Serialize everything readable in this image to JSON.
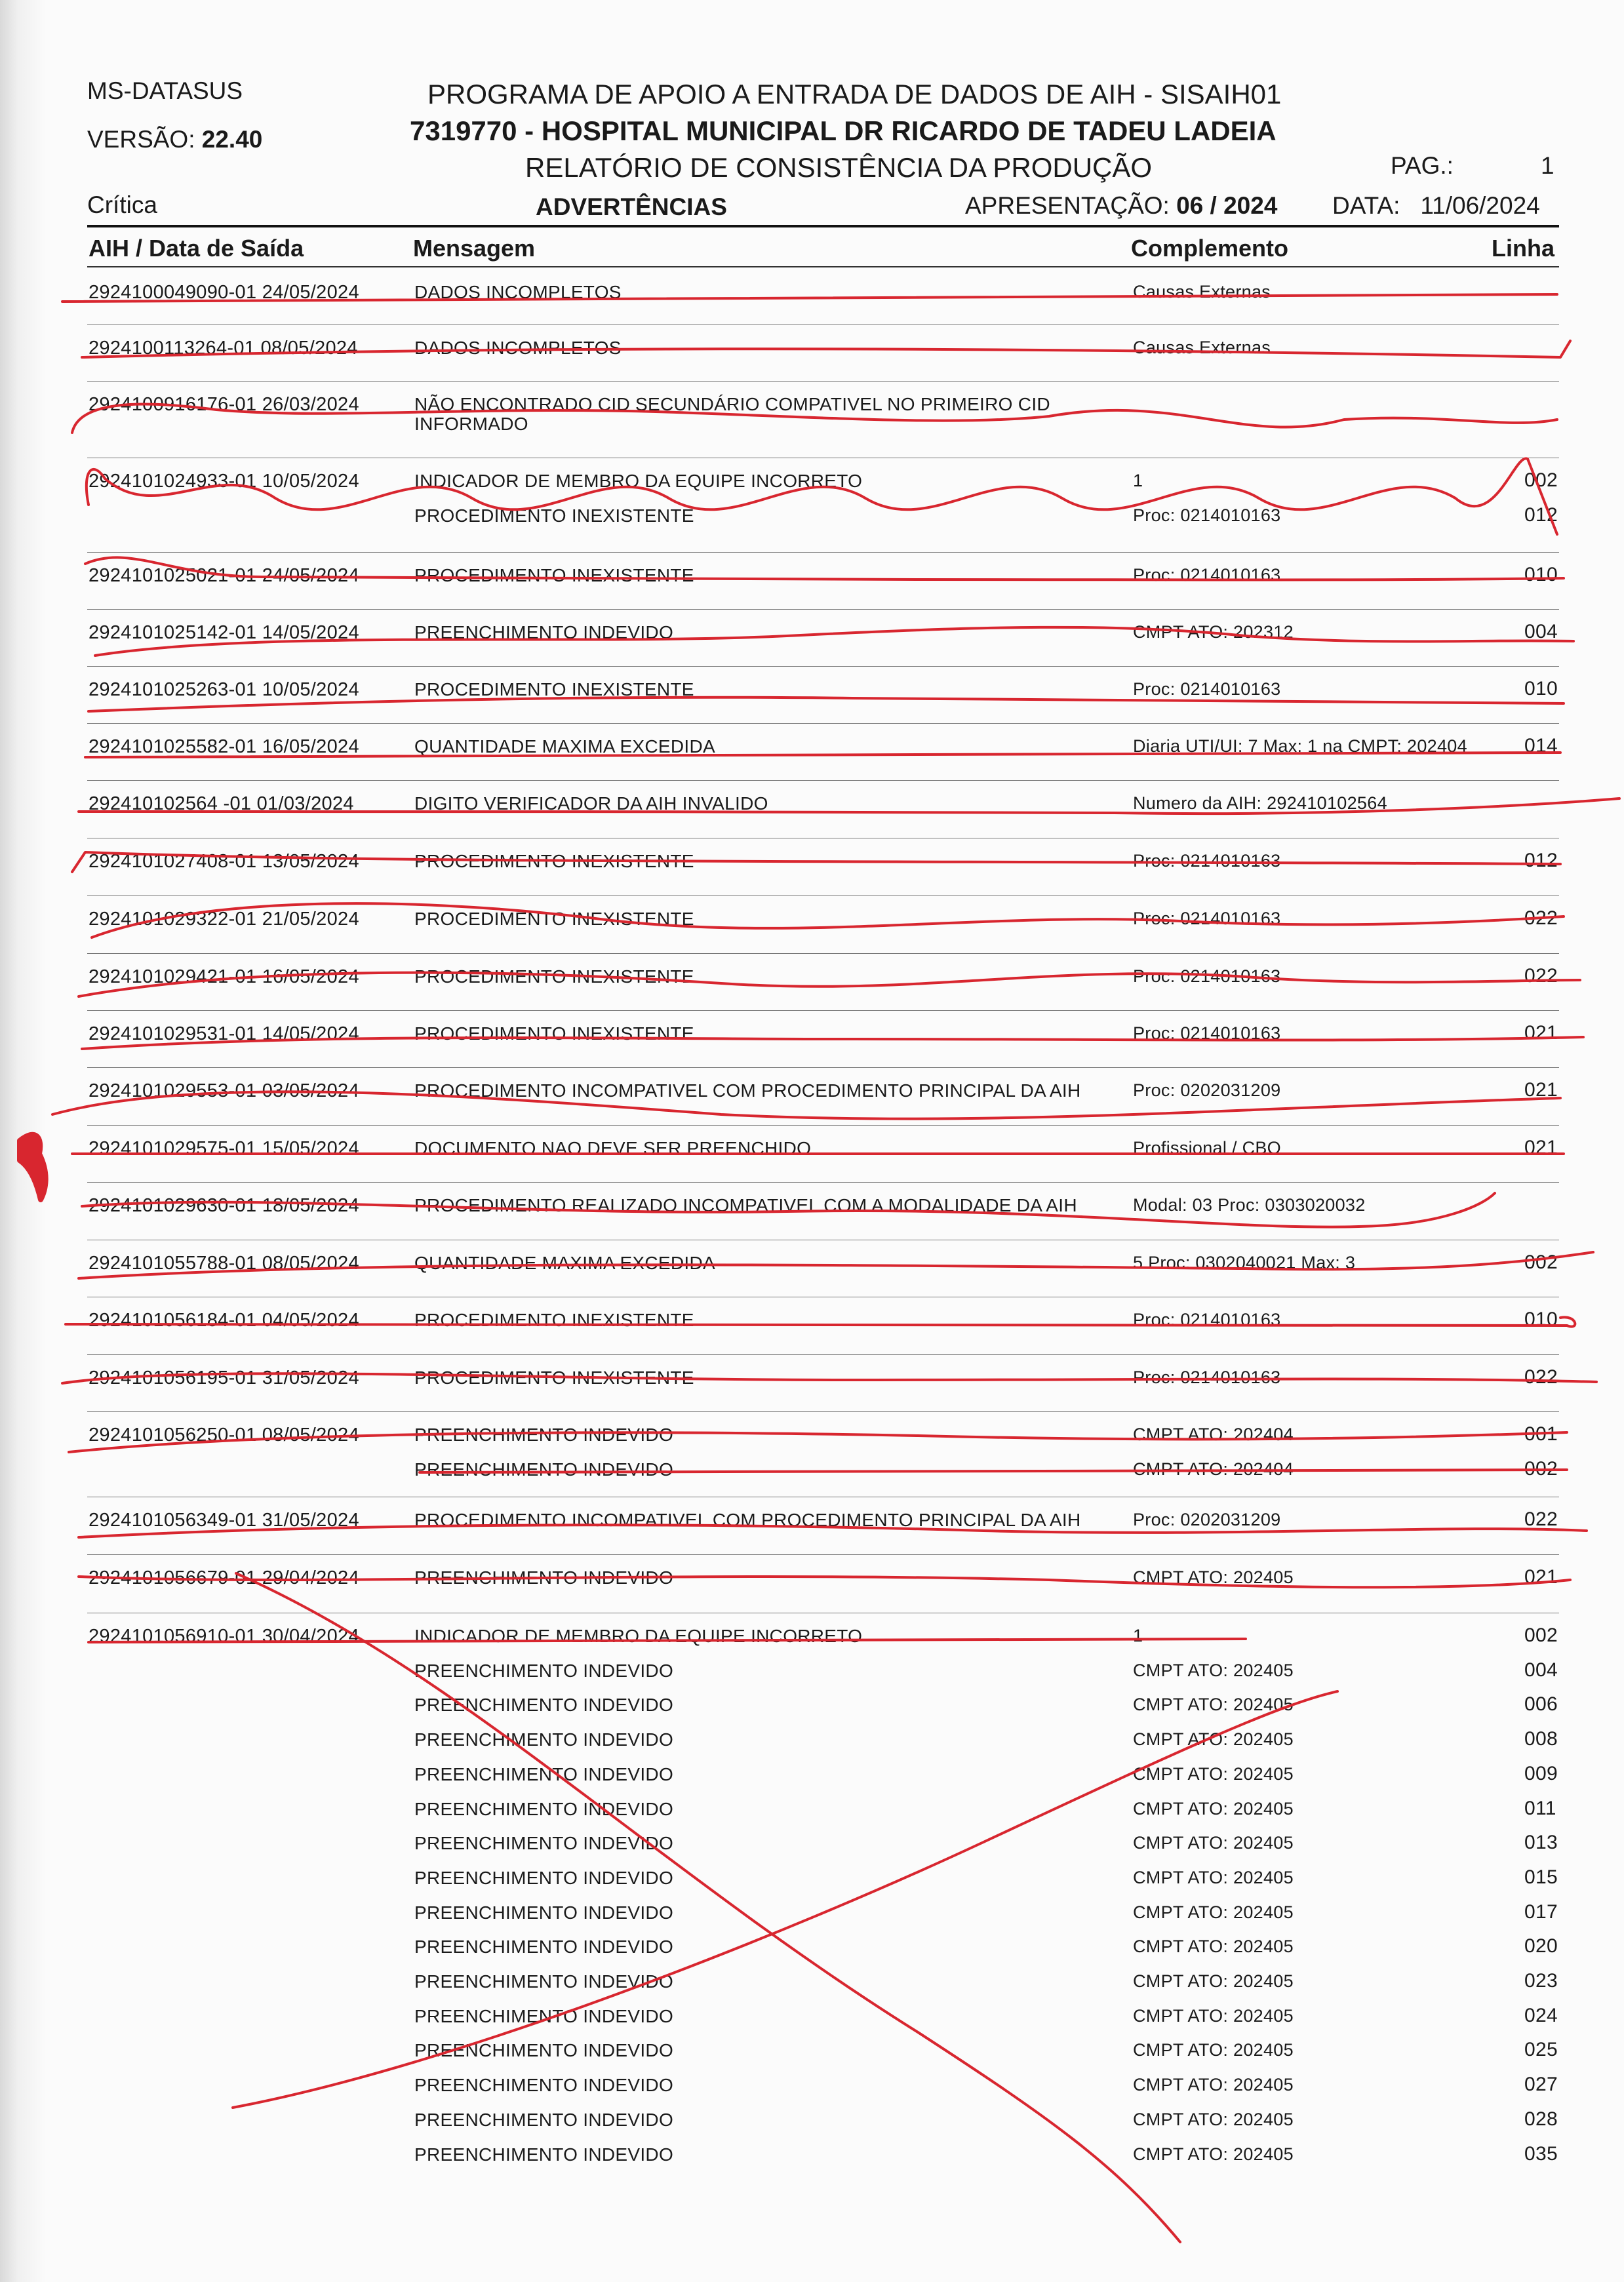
{
  "header": {
    "org": "MS-DATASUS",
    "version_label": "VERSÃO:",
    "version_value": "22.40",
    "critica": "Crítica",
    "program": "PROGRAMA DE APOIO A ENTRADA DE DADOS DE AIH - SISAIH01",
    "hospital": "7319770 - HOSPITAL MUNICIPAL DR RICARDO DE TADEU LADEIA",
    "report": "RELATÓRIO DE CONSISTÊNCIA DA PRODUÇÃO",
    "section": "ADVERTÊNCIAS",
    "apresentacao_label": "APRESENTAÇÃO:",
    "apresentacao_value": "06 / 2024",
    "data_label": "DATA:",
    "data_value": "11/06/2024",
    "pag_label": "PAG.:",
    "pag_value": "1"
  },
  "columns": {
    "aih": "AIH  /  Data de Saída",
    "msg": "Mensagem",
    "comp": "Complemento",
    "linha": "Linha"
  },
  "records": [
    {
      "aih": "2924100049090-01 24/05/2024",
      "lines": [
        {
          "msg": "DADOS INCOMPLETOS",
          "comp": "Causas Externas",
          "linha": ""
        }
      ]
    },
    {
      "aih": "2924100113264-01 08/05/2024",
      "lines": [
        {
          "msg": "DADOS INCOMPLETOS",
          "comp": "Causas Externas",
          "linha": ""
        }
      ]
    },
    {
      "aih": "2924100916176-01 26/03/2024",
      "lines": [
        {
          "msg": "NÃO ENCONTRADO CID SECUNDÁRIO COMPATIVEL NO PRIMEIRO CID",
          "comp": "",
          "linha": ""
        },
        {
          "msg": "INFORMADO",
          "comp": "",
          "linha": ""
        }
      ]
    },
    {
      "aih": "2924101024933-01 10/05/2024",
      "lines": [
        {
          "msg": "INDICADOR DE MEMBRO DA EQUIPE INCORRETO",
          "comp": "1",
          "linha": "002"
        },
        {
          "msg": "PROCEDIMENTO INEXISTENTE",
          "comp": "Proc: 0214010163",
          "linha": "012"
        }
      ]
    },
    {
      "aih": "2924101025021-01 24/05/2024",
      "lines": [
        {
          "msg": "PROCEDIMENTO INEXISTENTE",
          "comp": "Proc: 0214010163",
          "linha": "010"
        }
      ]
    },
    {
      "aih": "2924101025142-01 14/05/2024",
      "lines": [
        {
          "msg": "PREENCHIMENTO INDEVIDO",
          "comp": "CMPT ATO: 202312",
          "linha": "004"
        }
      ]
    },
    {
      "aih": "2924101025263-01 10/05/2024",
      "lines": [
        {
          "msg": "PROCEDIMENTO INEXISTENTE",
          "comp": "Proc: 0214010163",
          "linha": "010"
        }
      ]
    },
    {
      "aih": "2924101025582-01 16/05/2024",
      "lines": [
        {
          "msg": "QUANTIDADE MAXIMA EXCEDIDA",
          "comp": "Diaria UTI/UI: 7  Max: 1 na CMPT: 202404",
          "linha": "014"
        }
      ]
    },
    {
      "aih": "292410102564 -01 01/03/2024",
      "lines": [
        {
          "msg": "DIGITO VERIFICADOR DA AIH INVALIDO",
          "comp": "Numero da AIH: 292410102564",
          "linha": ""
        }
      ]
    },
    {
      "aih": "2924101027408-01 13/05/2024",
      "lines": [
        {
          "msg": "PROCEDIMENTO INEXISTENTE",
          "comp": "Proc: 0214010163",
          "linha": "012"
        }
      ]
    },
    {
      "aih": "2924101029322-01 21/05/2024",
      "lines": [
        {
          "msg": "PROCEDIMENTO INEXISTENTE",
          "comp": "Proc: 0214010163",
          "linha": "022"
        }
      ]
    },
    {
      "aih": "2924101029421-01 16/05/2024",
      "lines": [
        {
          "msg": "PROCEDIMENTO INEXISTENTE",
          "comp": "Proc: 0214010163",
          "linha": "022"
        }
      ]
    },
    {
      "aih": "2924101029531-01 14/05/2024",
      "lines": [
        {
          "msg": "PROCEDIMENTO INEXISTENTE",
          "comp": "Proc: 0214010163",
          "linha": "021"
        }
      ]
    },
    {
      "aih": "2924101029553-01 03/05/2024",
      "lines": [
        {
          "msg": "PROCEDIMENTO INCOMPATIVEL COM PROCEDIMENTO PRINCIPAL DA AIH",
          "comp": "Proc: 0202031209",
          "linha": "021"
        }
      ]
    },
    {
      "aih": "2924101029575-01 15/05/2024",
      "lines": [
        {
          "msg": "DOCUMENTO NAO DEVE SER PREENCHIDO",
          "comp": "Profissional / CBO",
          "linha": "021"
        }
      ]
    },
    {
      "aih": "2924101029630-01 18/05/2024",
      "lines": [
        {
          "msg": "PROCEDIMENTO REALIZADO INCOMPATIVEL COM A MODALIDADE DA AIH",
          "comp": "Modal: 03  Proc: 0303020032",
          "linha": ""
        }
      ]
    },
    {
      "aih": "2924101055788-01 08/05/2024",
      "lines": [
        {
          "msg": "QUANTIDADE MAXIMA EXCEDIDA",
          "comp": "5  Proc: 0302040021  Max: 3",
          "linha": "002"
        }
      ]
    },
    {
      "aih": "2924101056184-01 04/05/2024",
      "lines": [
        {
          "msg": "PROCEDIMENTO INEXISTENTE",
          "comp": "Proc: 0214010163",
          "linha": "010"
        }
      ]
    },
    {
      "aih": "2924101056195-01 31/05/2024",
      "lines": [
        {
          "msg": "PROCEDIMENTO INEXISTENTE",
          "comp": "Proc: 0214010163",
          "linha": "022"
        }
      ]
    },
    {
      "aih": "2924101056250-01 08/05/2024",
      "lines": [
        {
          "msg": "PREENCHIMENTO INDEVIDO",
          "comp": "CMPT ATO: 202404",
          "linha": "001"
        },
        {
          "msg": "PREENCHIMENTO INDEVIDO",
          "comp": "CMPT ATO: 202404",
          "linha": "002"
        }
      ]
    },
    {
      "aih": "2924101056349-01 31/05/2024",
      "lines": [
        {
          "msg": "PROCEDIMENTO INCOMPATIVEL COM PROCEDIMENTO PRINCIPAL DA AIH",
          "comp": "Proc: 0202031209",
          "linha": "022"
        }
      ]
    },
    {
      "aih": "2924101056679-01 29/04/2024",
      "lines": [
        {
          "msg": "PREENCHIMENTO INDEVIDO",
          "comp": "CMPT ATO: 202405",
          "linha": "021"
        }
      ]
    },
    {
      "aih": "2924101056910-01 30/04/2024",
      "lines": [
        {
          "msg": "INDICADOR DE MEMBRO DA EQUIPE INCORRETO",
          "comp": "1",
          "linha": "002"
        },
        {
          "msg": "PREENCHIMENTO INDEVIDO",
          "comp": "CMPT ATO: 202405",
          "linha": "004"
        },
        {
          "msg": "PREENCHIMENTO INDEVIDO",
          "comp": "CMPT ATO: 202405",
          "linha": "006"
        },
        {
          "msg": "PREENCHIMENTO INDEVIDO",
          "comp": "CMPT ATO: 202405",
          "linha": "008"
        },
        {
          "msg": "PREENCHIMENTO INDEVIDO",
          "comp": "CMPT ATO: 202405",
          "linha": "009"
        },
        {
          "msg": "PREENCHIMENTO INDEVIDO",
          "comp": "CMPT ATO: 202405",
          "linha": "011"
        },
        {
          "msg": "PREENCHIMENTO INDEVIDO",
          "comp": "CMPT ATO: 202405",
          "linha": "013"
        },
        {
          "msg": "PREENCHIMENTO INDEVIDO",
          "comp": "CMPT ATO: 202405",
          "linha": "015"
        },
        {
          "msg": "PREENCHIMENTO INDEVIDO",
          "comp": "CMPT ATO: 202405",
          "linha": "017"
        },
        {
          "msg": "PREENCHIMENTO INDEVIDO",
          "comp": "CMPT ATO: 202405",
          "linha": "020"
        },
        {
          "msg": "PREENCHIMENTO INDEVIDO",
          "comp": "CMPT ATO: 202405",
          "linha": "023"
        },
        {
          "msg": "PREENCHIMENTO INDEVIDO",
          "comp": "CMPT ATO: 202405",
          "linha": "024"
        },
        {
          "msg": "PREENCHIMENTO INDEVIDO",
          "comp": "CMPT ATO: 202405",
          "linha": "025"
        },
        {
          "msg": "PREENCHIMENTO INDEVIDO",
          "comp": "CMPT ATO: 202405",
          "linha": "027"
        },
        {
          "msg": "PREENCHIMENTO INDEVIDO",
          "comp": "CMPT ATO: 202405",
          "linha": "028"
        },
        {
          "msg": "PREENCHIMENTO INDEVIDO",
          "comp": "CMPT ATO: 202405",
          "linha": "035"
        }
      ]
    }
  ],
  "annotation_color": "#d8262f"
}
